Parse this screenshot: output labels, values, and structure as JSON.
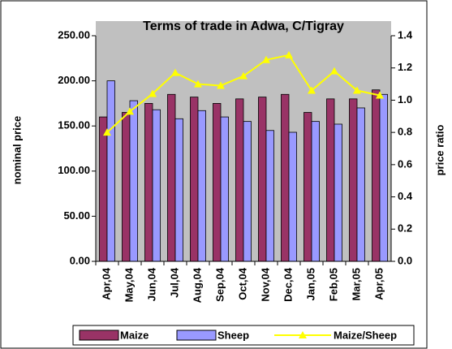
{
  "chart_data": {
    "type": "bar_line",
    "title": "Terms of trade in Adwa, C/Tigray",
    "ylabel": "nominal price",
    "y2label": "price ratio",
    "categories": [
      "Apr,04",
      "May,04",
      "Jun,04",
      "Jul,04",
      "Aug,04",
      "Sep,04",
      "Oct,04",
      "Nov,04",
      "Dec,04",
      "Jan,05",
      "Feb,05",
      "Mar,05",
      "Apr,05"
    ],
    "series": [
      {
        "name": "Maize",
        "color": "#993366",
        "type": "bar",
        "values": [
          160,
          165,
          175,
          185,
          182,
          175,
          180,
          182,
          185,
          165,
          180,
          180,
          190
        ]
      },
      {
        "name": "Sheep",
        "color": "#9999ff",
        "type": "bar",
        "values": [
          200,
          178,
          168,
          158,
          167,
          160,
          155,
          145,
          143,
          155,
          152,
          170,
          185
        ]
      },
      {
        "name": "Maize/Sheep",
        "color": "#ffff00",
        "type": "line",
        "axis": "y2",
        "values": [
          0.8,
          0.93,
          1.04,
          1.17,
          1.1,
          1.09,
          1.15,
          1.25,
          1.28,
          1.06,
          1.18,
          1.06,
          1.03
        ]
      }
    ],
    "ylim": [
      0,
      250
    ],
    "yticks": [
      {
        "value": 0,
        "label": "0.00"
      },
      {
        "value": 50,
        "label": "50.00"
      },
      {
        "value": 100,
        "label": "100.00"
      },
      {
        "value": 150,
        "label": "150.00"
      },
      {
        "value": 200,
        "label": "200.00"
      },
      {
        "value": 250,
        "label": "250.00"
      }
    ],
    "y2lim": [
      0,
      1.4
    ],
    "y2ticks": [
      {
        "value": 0,
        "label": "0.0"
      },
      {
        "value": 0.2,
        "label": "0.2"
      },
      {
        "value": 0.4,
        "label": "0.4"
      },
      {
        "value": 0.6,
        "label": "0.6"
      },
      {
        "value": 0.8,
        "label": "0.8"
      },
      {
        "value": 1.0,
        "label": "1.0"
      },
      {
        "value": 1.2,
        "label": "1.2"
      },
      {
        "value": 1.4,
        "label": "1.4"
      }
    ],
    "plot_background": "#c0c0c0",
    "legend": "bottom"
  }
}
